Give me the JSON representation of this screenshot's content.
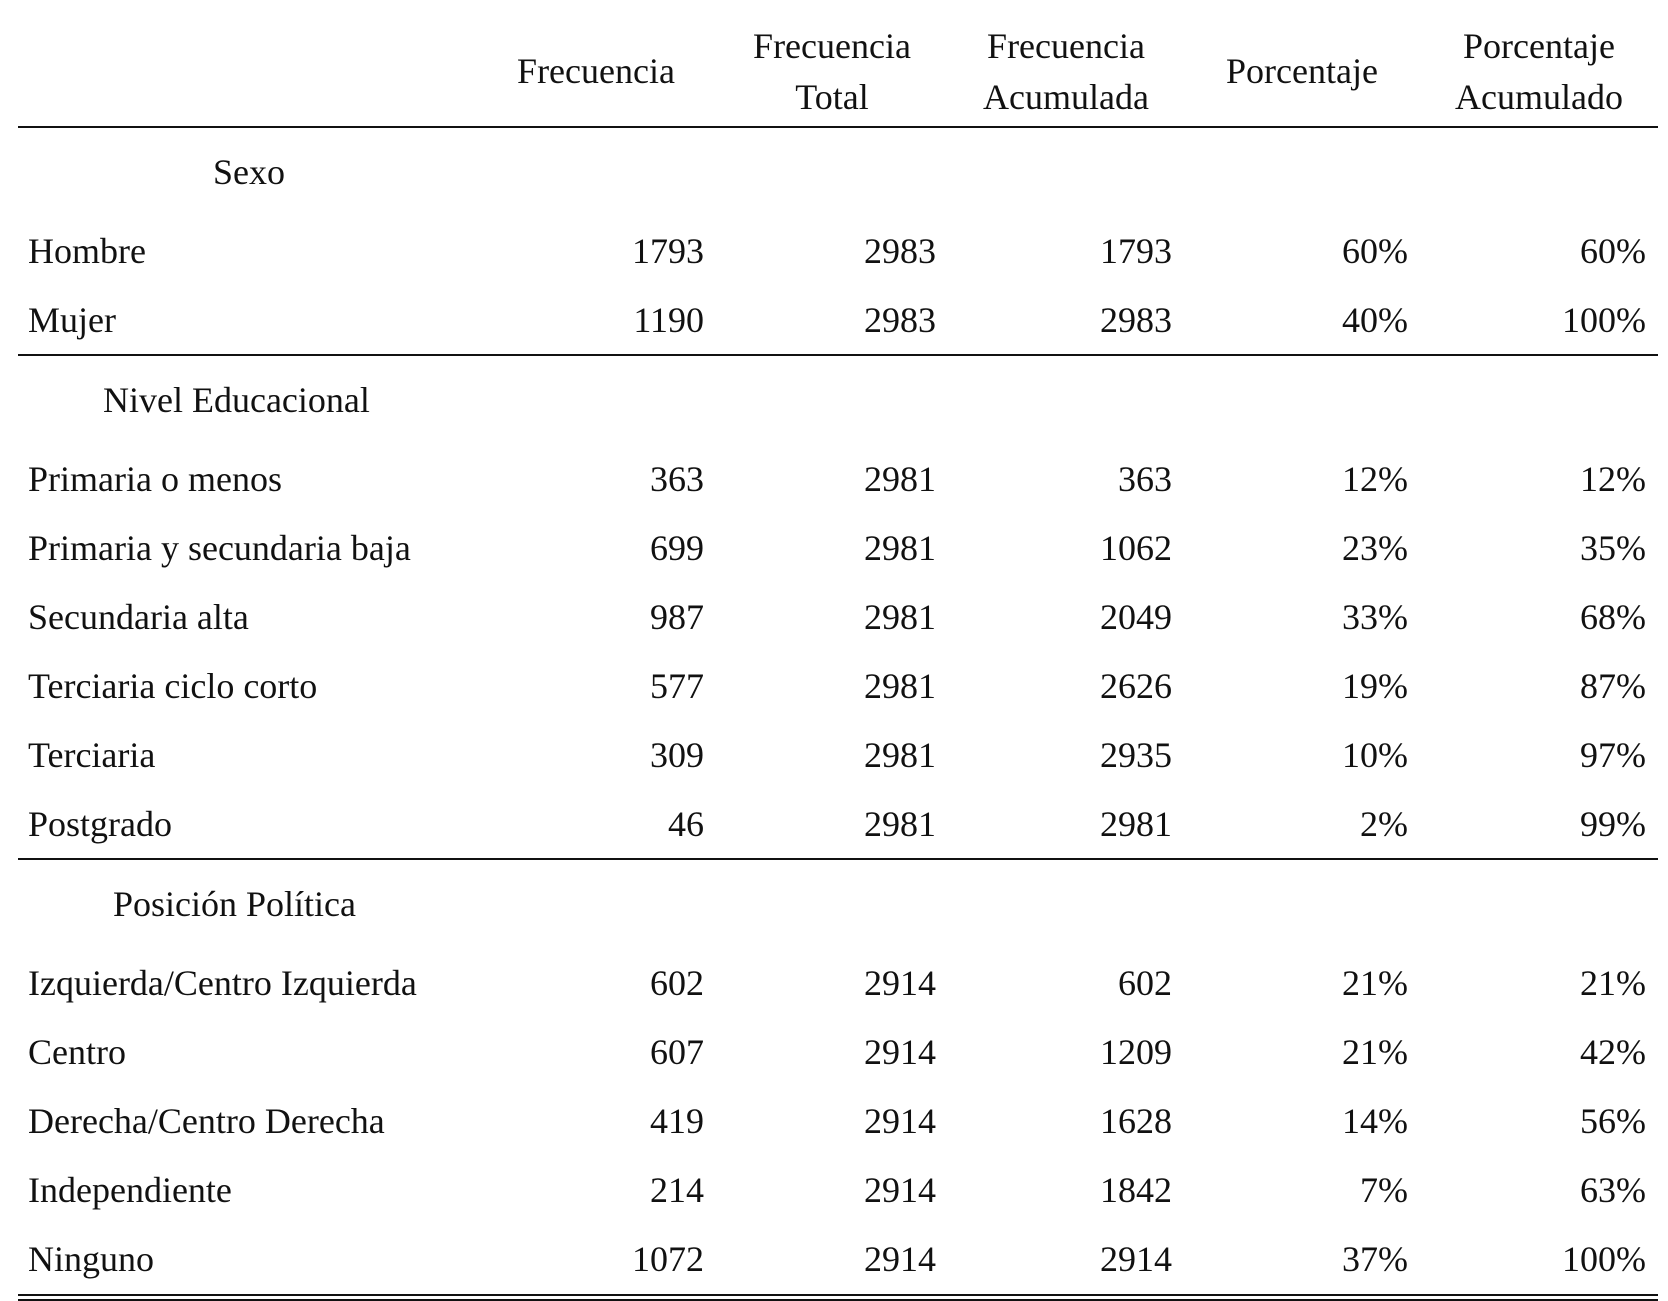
{
  "chart_data": {
    "type": "table",
    "columns": [
      "",
      "Frecuencia",
      "Frecuencia Total",
      "Frecuencia Acumulada",
      "Porcentaje",
      "Porcentaje Acumulado"
    ],
    "header": [
      {
        "line1": "",
        "line2": ""
      },
      {
        "line1": "Frecuencia",
        "line2": ""
      },
      {
        "line1": "Frecuencia",
        "line2": "Total"
      },
      {
        "line1": "Frecuencia",
        "line2": "Acumulada"
      },
      {
        "line1": "Porcentaje",
        "line2": ""
      },
      {
        "line1": "Porcentaje",
        "line2": "Acumulado"
      }
    ],
    "groups": [
      {
        "title": "Sexo",
        "rows": [
          {
            "label": "Hombre",
            "frecuencia": "1793",
            "frecuencia_total": "2983",
            "frecuencia_acumulada": "1793",
            "porcentaje": "60%",
            "porcentaje_acumulado": "60%"
          },
          {
            "label": "Mujer",
            "frecuencia": "1190",
            "frecuencia_total": "2983",
            "frecuencia_acumulada": "2983",
            "porcentaje": "40%",
            "porcentaje_acumulado": "100%"
          }
        ]
      },
      {
        "title": "Nivel Educacional",
        "rows": [
          {
            "label": "Primaria o menos",
            "frecuencia": "363",
            "frecuencia_total": "2981",
            "frecuencia_acumulada": "363",
            "porcentaje": "12%",
            "porcentaje_acumulado": "12%"
          },
          {
            "label": "Primaria y secundaria baja",
            "frecuencia": "699",
            "frecuencia_total": "2981",
            "frecuencia_acumulada": "1062",
            "porcentaje": "23%",
            "porcentaje_acumulado": "35%"
          },
          {
            "label": "Secundaria alta",
            "frecuencia": "987",
            "frecuencia_total": "2981",
            "frecuencia_acumulada": "2049",
            "porcentaje": "33%",
            "porcentaje_acumulado": "68%"
          },
          {
            "label": "Terciaria ciclo corto",
            "frecuencia": "577",
            "frecuencia_total": "2981",
            "frecuencia_acumulada": "2626",
            "porcentaje": "19%",
            "porcentaje_acumulado": "87%"
          },
          {
            "label": "Terciaria",
            "frecuencia": "309",
            "frecuencia_total": "2981",
            "frecuencia_acumulada": "2935",
            "porcentaje": "10%",
            "porcentaje_acumulado": "97%"
          },
          {
            "label": "Postgrado",
            "frecuencia": "46",
            "frecuencia_total": "2981",
            "frecuencia_acumulada": "2981",
            "porcentaje": "2%",
            "porcentaje_acumulado": "99%"
          }
        ]
      },
      {
        "title": "Posición Política",
        "rows": [
          {
            "label": "Izquierda/Centro Izquierda",
            "frecuencia": "602",
            "frecuencia_total": "2914",
            "frecuencia_acumulada": "602",
            "porcentaje": "21%",
            "porcentaje_acumulado": "21%"
          },
          {
            "label": "Centro",
            "frecuencia": "607",
            "frecuencia_total": "2914",
            "frecuencia_acumulada": "1209",
            "porcentaje": "21%",
            "porcentaje_acumulado": "42%"
          },
          {
            "label": "Derecha/Centro Derecha",
            "frecuencia": "419",
            "frecuencia_total": "2914",
            "frecuencia_acumulada": "1628",
            "porcentaje": "14%",
            "porcentaje_acumulado": "56%"
          },
          {
            "label": "Independiente",
            "frecuencia": "214",
            "frecuencia_total": "2914",
            "frecuencia_acumulada": "1842",
            "porcentaje": "7%",
            "porcentaje_acumulado": "63%"
          },
          {
            "label": "Ninguno",
            "frecuencia": "1072",
            "frecuencia_total": "2914",
            "frecuencia_acumulada": "2914",
            "porcentaje": "37%",
            "porcentaje_acumulado": "100%"
          }
        ]
      }
    ]
  }
}
